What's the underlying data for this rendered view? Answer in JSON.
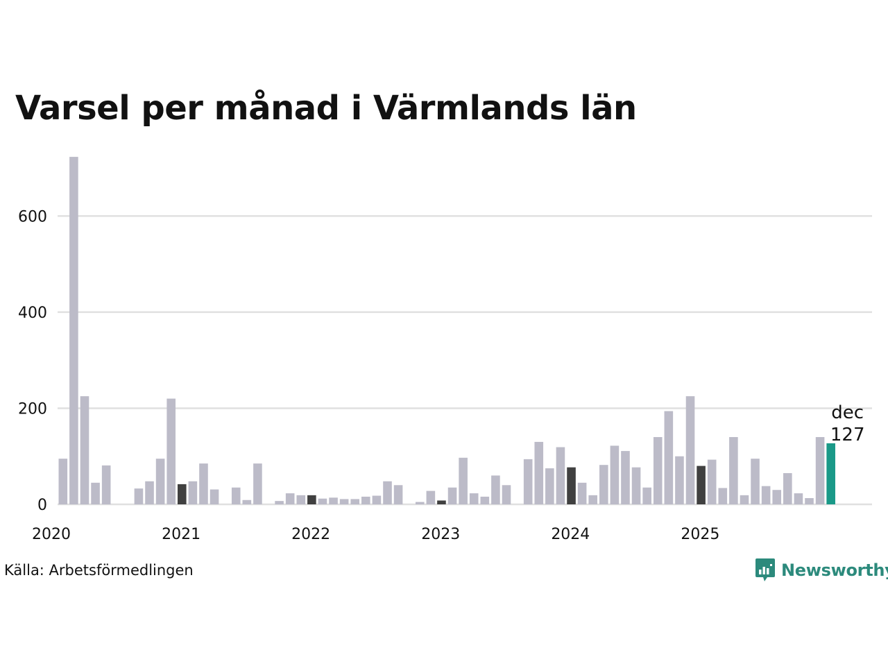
{
  "title": "Varsel per månad i Värmlands län",
  "source": "Källa: Arbetsförmedlingen",
  "brand": {
    "name": "Newsworthy",
    "icon": "newsworthy-logo-icon"
  },
  "colors": {
    "default": "#bcbbc8",
    "december": "#404040",
    "highlight": "#1a9988",
    "grid": "#e0e0e0"
  },
  "chart_data": {
    "type": "bar",
    "title": "Varsel per månad i Värmlands län",
    "xlabel": "",
    "ylabel": "",
    "ylim": [
      0,
      725
    ],
    "yticks": [
      0,
      200,
      400,
      600
    ],
    "grid": true,
    "year_labels": [
      "2020",
      "2021",
      "2022",
      "2023",
      "2024",
      "2025"
    ],
    "start": "2020-01",
    "categories": [
      "2020-01",
      "2020-02",
      "2020-03",
      "2020-04",
      "2020-05",
      "2020-06",
      "2020-07",
      "2020-08",
      "2020-09",
      "2020-10",
      "2020-11",
      "2020-12",
      "2021-01",
      "2021-02",
      "2021-03",
      "2021-04",
      "2021-05",
      "2021-06",
      "2021-07",
      "2021-08",
      "2021-09",
      "2021-10",
      "2021-11",
      "2021-12",
      "2022-01",
      "2022-02",
      "2022-03",
      "2022-04",
      "2022-05",
      "2022-06",
      "2022-07",
      "2022-08",
      "2022-09",
      "2022-10",
      "2022-11",
      "2022-12",
      "2023-01",
      "2023-02",
      "2023-03",
      "2023-04",
      "2023-05",
      "2023-06",
      "2023-07",
      "2023-08",
      "2023-09",
      "2023-10",
      "2023-11",
      "2023-12",
      "2024-01",
      "2024-02",
      "2024-03",
      "2024-04",
      "2024-05",
      "2024-06",
      "2024-07",
      "2024-08",
      "2024-09",
      "2024-10",
      "2024-11",
      "2024-12",
      "2025-01",
      "2025-02",
      "2025-03",
      "2025-04",
      "2025-05",
      "2025-06",
      "2025-07",
      "2025-08",
      "2025-09",
      "2025-10",
      "2025-11",
      "2025-12"
    ],
    "values": [
      95,
      723,
      225,
      45,
      81,
      0,
      0,
      33,
      48,
      95,
      220,
      42,
      48,
      85,
      31,
      0,
      35,
      9,
      85,
      0,
      7,
      23,
      19,
      19,
      12,
      14,
      11,
      11,
      16,
      18,
      48,
      40,
      0,
      5,
      28,
      8,
      35,
      97,
      23,
      16,
      60,
      40,
      0,
      94,
      130,
      75,
      119,
      77,
      45,
      19,
      82,
      122,
      111,
      77,
      35,
      140,
      194,
      100,
      225,
      80,
      93,
      34,
      140,
      19,
      95,
      38,
      30,
      65,
      23,
      13,
      140,
      127
    ],
    "annotation": {
      "month": "dec",
      "value": "127"
    }
  }
}
